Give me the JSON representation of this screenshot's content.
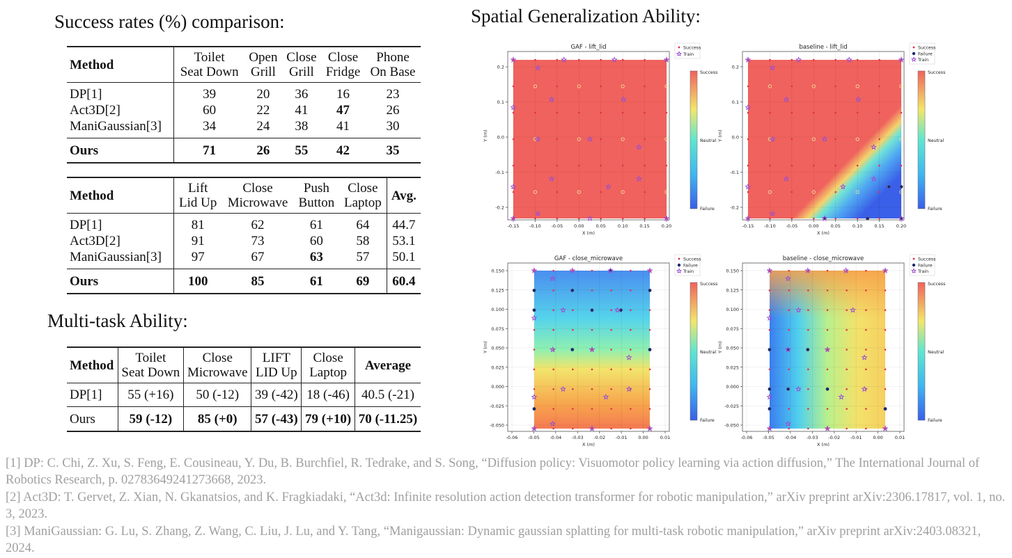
{
  "headings": {
    "success": "Success rates (%) comparison:",
    "multitask": "Multi-task Ability:",
    "spatial": "Spatial Generalization Ability:"
  },
  "table1": {
    "columns": [
      "Method",
      "Toilet\nSeat Down",
      "Open\nGrill",
      "Close\nGrill",
      "Close\nFridge",
      "Phone\nOn Base"
    ],
    "rows": [
      [
        "DP[1]",
        "39",
        "20",
        "36",
        "16",
        "23"
      ],
      [
        "Act3D[2]",
        "60",
        "22",
        "41",
        "47",
        "26"
      ],
      [
        "ManiGaussian[3]",
        "34",
        "24",
        "38",
        "41",
        "30"
      ],
      [
        "Ours",
        "71",
        "26",
        "55",
        "42",
        "35"
      ]
    ]
  },
  "table2": {
    "columns": [
      "Method",
      "Lift\nLid Up",
      "Close\nMicrowave",
      "Push\nButton",
      "Close\nLaptop",
      "Avg."
    ],
    "rows": [
      [
        "DP[1]",
        "81",
        "62",
        "61",
        "64",
        "44.7"
      ],
      [
        "Act3D[2]",
        "91",
        "73",
        "60",
        "58",
        "53.1"
      ],
      [
        "ManiGaussian[3]",
        "97",
        "67",
        "63",
        "57",
        "50.1"
      ],
      [
        "Ours",
        "100",
        "85",
        "61",
        "69",
        "60.4"
      ]
    ]
  },
  "table3": {
    "columns": [
      "Method",
      "Toilet\nSeat Down",
      "Close\nMicrowave",
      "LIFT\nLID Up",
      "Close\nLaptop",
      "Average"
    ],
    "rows": [
      [
        "DP[1]",
        "55 (+16)",
        "50 (-12)",
        "39 (-42)",
        "18 (-46)",
        "40.5 (-21)"
      ],
      [
        "Ours",
        "59 (-12)",
        "85 (+0)",
        "57 (-43)",
        "79 (+10)",
        "70 (-11.25)"
      ]
    ]
  },
  "plots": {
    "titles": [
      "GAF - lift_lid",
      "baseline - lift_lid",
      "GAF - close_microwave",
      "baseline - close_microwave"
    ],
    "xlabel": "X (m)",
    "ylabel": "Y (m)",
    "legend": {
      "success": "Success",
      "failure": "Failure",
      "train": "Train"
    },
    "colorbar": {
      "top": "Success",
      "mid": "Neutral",
      "bottom": "Failure"
    },
    "lift_xticks": [
      "-0.15",
      "-0.10",
      "-0.05",
      "0.00",
      "0.05",
      "0.10",
      "0.15",
      "0.20"
    ],
    "lift_yticks": [
      "0.2",
      "0.1",
      "0.0",
      "-0.1",
      "-0.2"
    ],
    "micro_xticks": [
      "-0.06",
      "-0.05",
      "-0.04",
      "-0.03",
      "-0.02",
      "-0.01",
      "0.00",
      "0.01"
    ],
    "micro_yticks": [
      "0.150",
      "0.125",
      "0.100",
      "0.075",
      "0.050",
      "0.025",
      "0.000",
      "-0.025",
      "-0.050"
    ],
    "colors": {
      "red": "#f0625d",
      "blue": "#3a5fe8",
      "cyan": "#54d6f0",
      "yellow": "#f6e66a",
      "orange": "#f8a04a"
    }
  },
  "references": [
    "[1] DP: C. Chi, Z. Xu, S. Feng, E. Cousineau, Y. Du, B. Burchfiel, R. Tedrake, and S. Song, “Diffusion policy: Visuomotor policy learning via action diffusion,” The International Journal of Robotics Research, p. 02783649241273668, 2023.",
    "[2] Act3D: T. Gervet, Z. Xian, N. Gkanatsios, and K. Fragkiadaki, “Act3d: Infinite resolution action detection transformer for robotic manipulation,” arXiv preprint arXiv:2306.17817, vol. 1, no. 3, 2023.",
    "[3] ManiGaussian: G. Lu, S. Zhang, Z. Wang, C. Liu, J. Lu, and Y. Tang, “Manigaussian: Dynamic gaussian splatting for multi-task robotic manipulation,” arXiv preprint arXiv:2403.08321, 2024."
  ]
}
